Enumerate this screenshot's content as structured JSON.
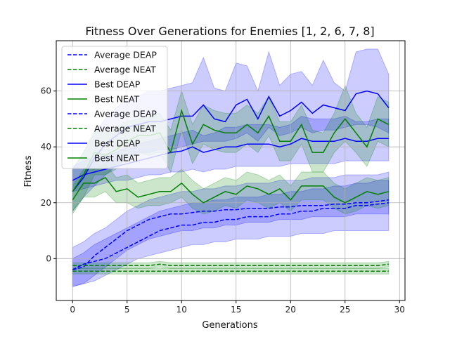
{
  "chart_data": {
    "type": "line",
    "title": "Fitness Over Generations for Enemies [1, 2, 6, 7, 8]",
    "xlabel": "Generations",
    "ylabel": "Fitness",
    "xlim": [
      -1.5,
      30.5
    ],
    "ylim": [
      -15,
      78
    ],
    "xticks": [
      0,
      5,
      10,
      15,
      20,
      25,
      30
    ],
    "yticks": [
      0,
      20,
      40,
      60
    ],
    "grid": true,
    "legend_position": "top-left",
    "x": [
      0,
      1,
      2,
      3,
      4,
      5,
      6,
      7,
      8,
      9,
      10,
      11,
      12,
      13,
      14,
      15,
      16,
      17,
      18,
      19,
      20,
      21,
      22,
      23,
      24,
      25,
      26,
      27,
      28,
      29
    ],
    "series": [
      {
        "name": "Average DEAP",
        "style": "dashed",
        "color": "#0000ff",
        "values": [
          -4,
          -3,
          1,
          4,
          7,
          10,
          12,
          14,
          15,
          16,
          16,
          16.5,
          17,
          17,
          17.5,
          17.5,
          18,
          18,
          18,
          18.5,
          18.5,
          19,
          19,
          19,
          19.5,
          19.5,
          20,
          20,
          20.5,
          21
        ]
      },
      {
        "name": "Average NEAT",
        "style": "dashed",
        "color": "#008000",
        "values": [
          -2.5,
          -2.5,
          -2.5,
          -2.5,
          -2.5,
          -2.5,
          -2.5,
          -2.5,
          -2,
          -2.5,
          -2.5,
          -2.5,
          -2.5,
          -2.5,
          -2.5,
          -2.5,
          -2.5,
          -2.5,
          -2.5,
          -2.5,
          -2.5,
          -2.5,
          -2.5,
          -2.5,
          -2.5,
          -2.5,
          -2.5,
          -2.5,
          -2.5,
          -2
        ]
      },
      {
        "name": "Best DEAP",
        "style": "solid",
        "color": "#0000ff",
        "values": [
          24,
          29,
          36,
          41,
          44,
          47,
          48,
          49,
          49,
          50,
          51,
          51,
          55,
          50,
          49,
          55,
          57,
          50,
          58,
          51,
          53,
          56,
          52,
          55,
          54,
          53,
          59,
          60,
          59,
          54
        ]
      },
      {
        "name": "Best NEAT",
        "style": "solid",
        "color": "#008000",
        "values": [
          21,
          27,
          27,
          29,
          24,
          25,
          22,
          23,
          24,
          24,
          27,
          23,
          20,
          22,
          24,
          23,
          26,
          25,
          23,
          25,
          21,
          26,
          26,
          26,
          22,
          20,
          22,
          24,
          23,
          24
        ]
      },
      {
        "name": "Average DEAP",
        "style": "dashed",
        "color": "#0000ff",
        "values": [
          -4,
          -2,
          -1,
          0,
          2,
          4,
          6,
          8,
          10,
          11,
          12,
          12,
          13,
          13,
          14,
          14,
          15,
          15,
          15,
          16,
          16,
          17,
          17,
          18,
          18,
          18,
          19,
          19,
          19.5,
          20
        ]
      },
      {
        "name": "Average NEAT",
        "style": "dashed",
        "color": "#008000",
        "values": [
          -4.5,
          -4.5,
          -4.5,
          -4.5,
          -4.5,
          -4.5,
          -4.5,
          -4.5,
          -4.5,
          -4.5,
          -4.5,
          -4.5,
          -4.5,
          -4.5,
          -4.5,
          -4.5,
          -4.5,
          -4.5,
          -4.5,
          -4.5,
          -4.5,
          -4.5,
          -4.5,
          -4.5,
          -4.5,
          -4.5,
          -4.5,
          -4.5,
          -4.5,
          -4.5
        ]
      },
      {
        "name": "Best DEAP",
        "style": "solid",
        "color": "#0000ff",
        "values": [
          28,
          30,
          31,
          32,
          33,
          34,
          35,
          36,
          37,
          38,
          38.5,
          40,
          38,
          39,
          40,
          40,
          41,
          41,
          41,
          40,
          41,
          43,
          42,
          42,
          42,
          43,
          42,
          42,
          43,
          43
        ]
      },
      {
        "name": "Best NEAT",
        "style": "solid",
        "color": "#008000",
        "values": [
          24,
          30,
          38,
          37,
          39,
          42,
          44,
          44,
          45,
          38,
          53,
          41,
          48,
          46,
          45,
          45,
          48,
          45,
          51,
          42,
          42,
          48,
          38,
          38,
          45,
          50,
          45,
          40,
          50,
          48
        ]
      }
    ],
    "bands": [
      {
        "color": "#0000ff",
        "alpha": 0.2,
        "lower": [
          -10,
          -9,
          -6,
          -3,
          0,
          3,
          5,
          7,
          8,
          9,
          10,
          10,
          11,
          11,
          12,
          12,
          13,
          13,
          13,
          14,
          14,
          14,
          15,
          15,
          15,
          15,
          16,
          16,
          16,
          16
        ],
        "upper": [
          4,
          6,
          9,
          11,
          14,
          17,
          19,
          21,
          22,
          23,
          24,
          24,
          25,
          25,
          26,
          26,
          27,
          27,
          27,
          28,
          28,
          28,
          29,
          29,
          29,
          30,
          30,
          30,
          30,
          31
        ]
      },
      {
        "color": "#0000ff",
        "alpha": 0.2,
        "lower": [
          -10,
          -9,
          -8,
          -6,
          -4,
          -2,
          0,
          1,
          2,
          3,
          4,
          5,
          5,
          6,
          6,
          7,
          7,
          7,
          8,
          8,
          8,
          9,
          9,
          9,
          10,
          10,
          10,
          10,
          10,
          10
        ],
        "upper": [
          0,
          2,
          5,
          7,
          9,
          11,
          13,
          15,
          17,
          18,
          19,
          20,
          20,
          21,
          21,
          22,
          22,
          22,
          23,
          23,
          24,
          24,
          25,
          25,
          26,
          26,
          27,
          27,
          28,
          28
        ]
      },
      {
        "color": "#008000",
        "alpha": 0.2,
        "lower": [
          -3.5,
          -3.5,
          -3.5,
          -3.5,
          -3.5,
          -3.5,
          -3.5,
          -3.5,
          -3,
          -3.5,
          -3.5,
          -3.5,
          -3.5,
          -3.5,
          -3.5,
          -3.5,
          -3.5,
          -3.5,
          -3.5,
          -3.5,
          -3.5,
          -3.5,
          -3.5,
          -3.5,
          -3.5,
          -3.5,
          -3.5,
          -3.5,
          -3.5,
          -3
        ],
        "upper": [
          -1.5,
          -1.5,
          -1.5,
          -1.5,
          -1.5,
          -1.5,
          -1.5,
          -1.5,
          -1,
          -1.5,
          -1.5,
          -1.5,
          -1.5,
          -1.5,
          -1.5,
          -1.5,
          -1.5,
          -1.5,
          -1.5,
          -1.5,
          -1.5,
          -1.5,
          -1.5,
          -1.5,
          -1.5,
          -1.5,
          -1.5,
          -1.5,
          -1.5,
          -1
        ]
      },
      {
        "color": "#008000",
        "alpha": 0.2,
        "lower": [
          -5.5,
          -5.5,
          -5.5,
          -5.5,
          -5.5,
          -5.5,
          -5.5,
          -5.5,
          -5.5,
          -5.5,
          -5.5,
          -5.5,
          -5.5,
          -5.5,
          -5.5,
          -5.5,
          -5.5,
          -5.5,
          -5.5,
          -5.5,
          -5.5,
          -5.5,
          -5.5,
          -5.5,
          -5.5,
          -5.5,
          -5.5,
          -5.5,
          -5.5,
          -5.5
        ],
        "upper": [
          -3.5,
          -3.5,
          -3.5,
          -3.5,
          -3.5,
          -3.5,
          -3.5,
          -3.5,
          -3.5,
          -3.5,
          -3.5,
          -3.5,
          -3.5,
          -3.5,
          -3.5,
          -3.5,
          -3.5,
          -3.5,
          -3.5,
          -3.5,
          -3.5,
          -3.5,
          -3.5,
          -3.5,
          -3.5,
          -3.5,
          -3.5,
          -3.5,
          -3.5,
          -3.5
        ]
      },
      {
        "color": "#0000ff",
        "alpha": 0.2,
        "lower": [
          17,
          22,
          26,
          30,
          33,
          36,
          38,
          38,
          39,
          39,
          40,
          41,
          42,
          42,
          42,
          43,
          45,
          42,
          47,
          44,
          45,
          47,
          45,
          46,
          46,
          47,
          48,
          48,
          47,
          45
        ],
        "upper": [
          32,
          38,
          45,
          50,
          54,
          57,
          58,
          60,
          60,
          61,
          62,
          63,
          72,
          61,
          60,
          70,
          69,
          60,
          74,
          62,
          66,
          67,
          62,
          71,
          63,
          60,
          74,
          75,
          75,
          66
        ]
      },
      {
        "color": "#0000ff",
        "alpha": 0.2,
        "lower": [
          24,
          25,
          26,
          27,
          28,
          28,
          29,
          30,
          30,
          31,
          31,
          32,
          31,
          32,
          32,
          33,
          33,
          33,
          33,
          33,
          34,
          34,
          34,
          34,
          34,
          35,
          35,
          35,
          35,
          35
        ],
        "upper": [
          33,
          35,
          36,
          37,
          38,
          40,
          41,
          42,
          43,
          44,
          45,
          46,
          44,
          45,
          47,
          47,
          48,
          48,
          48,
          47,
          48,
          51,
          50,
          50,
          50,
          51,
          49,
          49,
          50,
          50
        ]
      },
      {
        "color": "#008000",
        "alpha": 0.2,
        "lower": [
          16,
          22,
          22,
          24,
          20,
          20,
          18,
          19,
          19,
          20,
          22,
          18,
          16,
          17,
          19,
          18,
          21,
          20,
          18,
          20,
          17,
          21,
          21,
          21,
          18,
          16,
          17,
          19,
          18,
          19
        ],
        "upper": [
          26,
          32,
          32,
          34,
          29,
          30,
          27,
          28,
          29,
          29,
          32,
          28,
          25,
          27,
          29,
          28,
          31,
          30,
          28,
          30,
          26,
          31,
          31,
          31,
          27,
          25,
          27,
          29,
          28,
          29
        ]
      },
      {
        "color": "#008000",
        "alpha": 0.2,
        "lower": [
          17,
          22,
          30,
          30,
          32,
          36,
          38,
          37,
          38,
          31,
          46,
          34,
          41,
          39,
          38,
          38,
          41,
          38,
          44,
          35,
          35,
          41,
          31,
          31,
          38,
          42,
          38,
          33,
          42,
          40
        ],
        "upper": [
          32,
          38,
          46,
          45,
          47,
          49,
          50,
          51,
          52,
          46,
          60,
          48,
          55,
          53,
          52,
          52,
          55,
          52,
          58,
          49,
          49,
          55,
          46,
          45,
          52,
          62,
          52,
          47,
          58,
          56
        ]
      }
    ]
  }
}
